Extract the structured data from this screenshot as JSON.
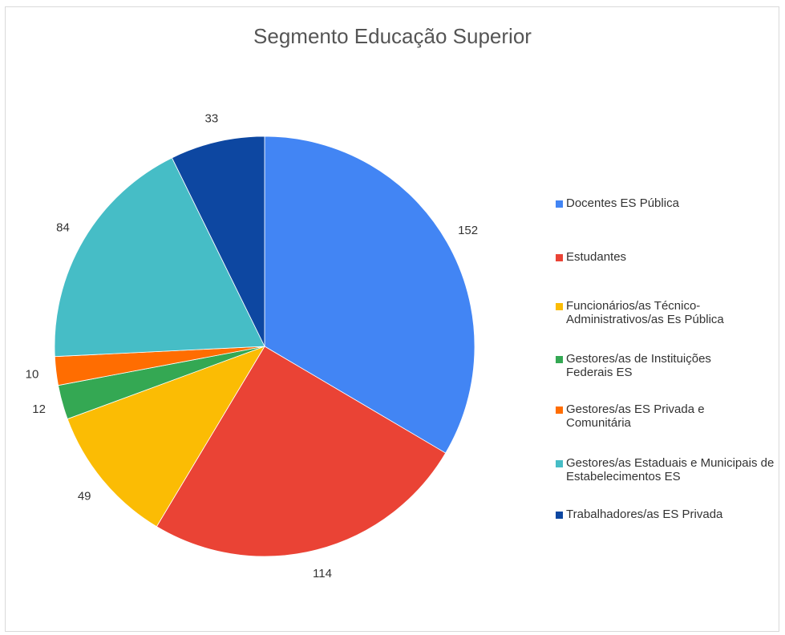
{
  "chart_data": {
    "type": "pie",
    "title": "Segmento Educação Superior",
    "categories": [
      "Docentes ES Pública",
      "Estudantes",
      "Funcionários/as Técnico-Administrativos/as Es Pública",
      "Gestores/as de Instituições Federais ES",
      "Gestores/as ES Privada e Comunitária",
      "Gestores/as Estaduais e Municipais de Estabelecimentos ES",
      "Trabalhadores/as ES Privada"
    ],
    "values": [
      152,
      114,
      49,
      12,
      10,
      84,
      33
    ],
    "colors": [
      "#4285f4",
      "#ea4335",
      "#fbbc04",
      "#34a853",
      "#ff6d01",
      "#46bdc6",
      "#0d47a1"
    ],
    "legend_position": "right"
  }
}
